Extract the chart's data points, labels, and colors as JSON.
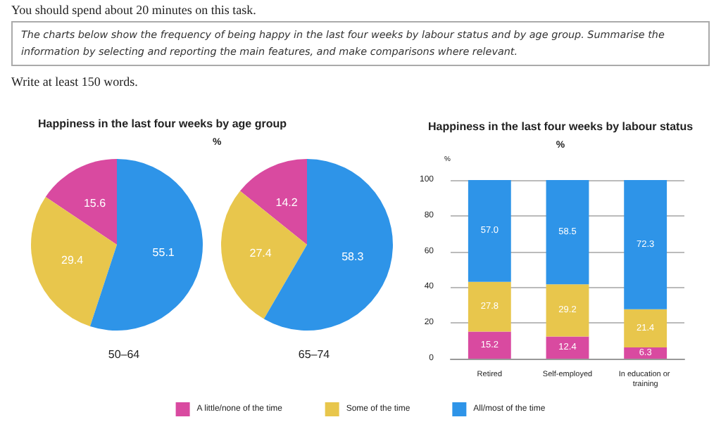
{
  "chart_data": [
    {
      "type": "other",
      "annotations": [
        "You should spend about 20 minutes on this task.",
        "The charts below show the frequency of being happy in the last four weeks by labour status and by age group. Summarise the information by selecting and reporting the main features, and make comparisons where relevant.",
        "Write at least 150 words."
      ]
    },
    {
      "type": "pie",
      "title": "Happiness in the last four weeks by age group",
      "subtitle": "%",
      "xlabel": "50–64",
      "categories": [
        null,
        null,
        null
      ],
      "values": [
        15.6,
        29.4,
        55.1
      ],
      "colors": [
        "#d94aa0",
        "#e8c64c",
        "#2e94e8"
      ],
      "data_labels": true,
      "legend": false
    },
    {
      "type": "pie",
      "xlabel": "65–74",
      "categories": [
        null,
        null,
        null
      ],
      "values": [
        14.2,
        27.4,
        58.3
      ],
      "colors": [
        "#d94aa0",
        "#e8c64c",
        "#2e94e8"
      ],
      "data_labels": true,
      "legend": false
    },
    {
      "type": "bar",
      "title": "Happiness in the last four weeks by labour status",
      "subtitle": "%",
      "ylabel": "%",
      "categories": [
        "Retired",
        "Self-employed",
        "In education or training"
      ],
      "stacked": true,
      "ylim": [
        0,
        100
      ],
      "yticks": [
        0,
        20,
        40,
        60,
        80,
        100
      ],
      "grid": "y",
      "legend": "bottom",
      "series": [
        {
          "name": "A little/none of the time",
          "color": "#d94aa0",
          "values": [
            15.2,
            12.4,
            6.3
          ],
          "value_labels": [
            "15.2",
            "12.4",
            "6.3"
          ]
        },
        {
          "name": "Some of the time",
          "color": "#e8c64c",
          "values": [
            27.8,
            29.2,
            21.4
          ],
          "value_labels": [
            "27.8",
            "29.2",
            "21.4"
          ]
        },
        {
          "name": "All/most of the time",
          "color": "#2e94e8",
          "values": [
            57.0,
            58.5,
            72.3
          ],
          "value_labels": [
            "57.0",
            "58.5",
            "72.3"
          ]
        }
      ]
    }
  ]
}
